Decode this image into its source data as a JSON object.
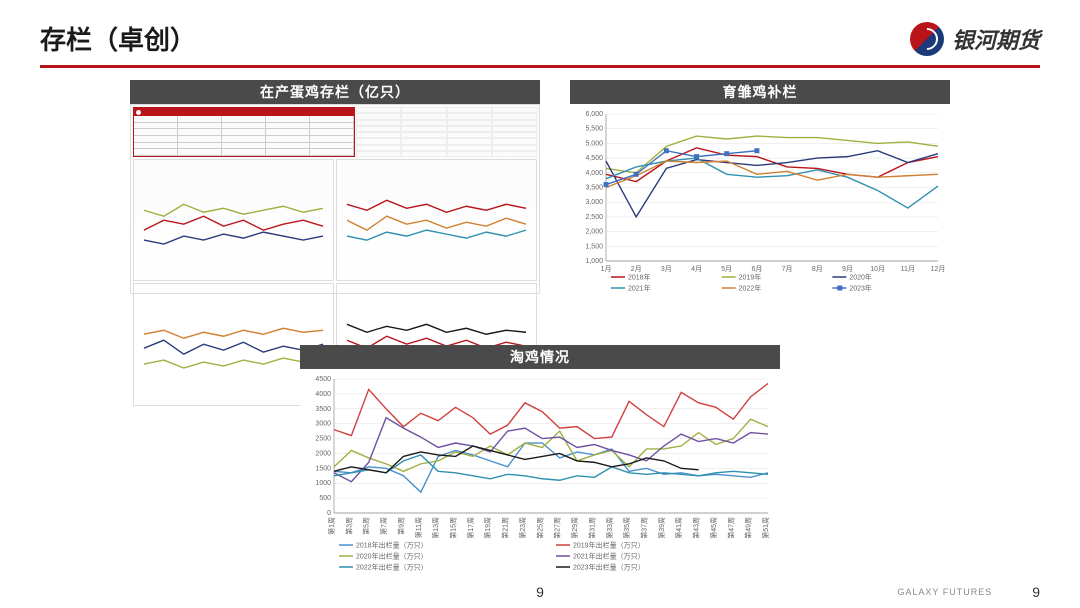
{
  "header": {
    "title": "存栏（卓创）",
    "company": "银河期货"
  },
  "panels": {
    "left": {
      "title": "在产蛋鸡存栏（亿只）"
    },
    "right": {
      "title": "育雏鸡补栏"
    },
    "bottom": {
      "title": "淘鸡情况"
    }
  },
  "chart_right": {
    "type": "line",
    "ylim": [
      1000,
      6000
    ],
    "ytick_step": 500,
    "yticks": [
      "1,000",
      "1,500",
      "2,000",
      "2,500",
      "3,000",
      "3,500",
      "4,000",
      "4,500",
      "5,000",
      "5,500",
      "6,000"
    ],
    "xticks": [
      "1月",
      "2月",
      "3月",
      "4月",
      "5月",
      "6月",
      "7月",
      "8月",
      "9月",
      "10月",
      "11月",
      "12月"
    ],
    "background_color": "#ffffff",
    "grid_color": "#e0e0e0",
    "series": [
      {
        "name": "2018年",
        "color": "#b8141a",
        "marker": "none",
        "values": [
          3950,
          3700,
          4400,
          4850,
          4600,
          4550,
          4200,
          4150,
          3950,
          3850,
          4350,
          4550
        ]
      },
      {
        "name": "2019年",
        "color": "#a0b040",
        "marker": "none",
        "values": [
          4150,
          4000,
          4900,
          5250,
          5150,
          5250,
          5200,
          5200,
          5100,
          5000,
          5050,
          4900
        ]
      },
      {
        "name": "2020年",
        "color": "#2a3a7a",
        "marker": "none",
        "values": [
          4400,
          2500,
          4150,
          4450,
          4350,
          4250,
          4350,
          4500,
          4550,
          4750,
          4350,
          4650
        ]
      },
      {
        "name": "2021年",
        "color": "#3090b0",
        "marker": "none",
        "values": [
          3800,
          4200,
          4400,
          4500,
          3950,
          3850,
          3900,
          4100,
          3850,
          3400,
          2800,
          3550
        ]
      },
      {
        "name": "2022年",
        "color": "#d08030",
        "marker": "none",
        "values": [
          3500,
          3900,
          4400,
          4350,
          4400,
          3950,
          4050,
          3750,
          3950,
          3850,
          3900,
          3950
        ]
      },
      {
        "name": "2023年",
        "color": "#4070c0",
        "marker": "square",
        "values": [
          3600,
          3950,
          4750,
          4550,
          4650,
          4750
        ]
      }
    ],
    "legend_pos": "bottom"
  },
  "chart_bottom": {
    "type": "line",
    "ylim": [
      0,
      4500
    ],
    "ytick_step": 500,
    "yticks": [
      "0",
      "500",
      "1000",
      "1500",
      "2000",
      "2500",
      "3000",
      "3500",
      "4000",
      "4500"
    ],
    "xticks": [
      "第1周",
      "第3周",
      "第5周",
      "第7周",
      "第9周",
      "第11周",
      "第13周",
      "第15周",
      "第17周",
      "第19周",
      "第21周",
      "第23周",
      "第25周",
      "第27周",
      "第29周",
      "第31周",
      "第33周",
      "第35周",
      "第37周",
      "第39周",
      "第41周",
      "第43周",
      "第45周",
      "第47周",
      "第49周",
      "第51周"
    ],
    "background_color": "#ffffff",
    "grid_color": "#e0e0e0",
    "series": [
      {
        "name": "2018年出栏量（万只）",
        "color": "#4a90d0",
        "values": [
          1400,
          1350,
          1550,
          1500,
          1250,
          700,
          1900,
          2100,
          1950,
          1750,
          1550,
          2350,
          2350,
          1850,
          2050,
          1950,
          2150,
          1400,
          1500,
          1300,
          1350,
          1250,
          1300,
          1250,
          1200,
          1350
        ]
      },
      {
        "name": "2019年出栏量（万只）",
        "color": "#d04040",
        "values": [
          2800,
          2600,
          4150,
          3500,
          2900,
          3350,
          3100,
          3550,
          3200,
          2650,
          2950,
          3700,
          3400,
          2850,
          2900,
          2500,
          2550,
          3750,
          3300,
          2900,
          4050,
          3700,
          3550,
          3150,
          3900,
          4350
        ]
      },
      {
        "name": "2020年出栏量（万只）",
        "color": "#a0b040",
        "values": [
          1550,
          2100,
          1850,
          1650,
          1400,
          1650,
          1750,
          2050,
          1900,
          2250,
          1950,
          2350,
          2200,
          2750,
          1750,
          1950,
          2100,
          1550,
          2150,
          2150,
          2250,
          2700,
          2300,
          2500,
          3150,
          2900
        ]
      },
      {
        "name": "2021年出栏量（万只）",
        "color": "#7050a0",
        "values": [
          1350,
          1050,
          1700,
          3200,
          2850,
          2550,
          2200,
          2350,
          2250,
          2050,
          2750,
          2850,
          2500,
          2550,
          2200,
          2300,
          2100,
          1950,
          1750,
          2250,
          2650,
          2400,
          2500,
          2350,
          2700,
          2650
        ]
      },
      {
        "name": "2022年出栏量（万只）",
        "color": "#3090b0",
        "values": [
          1250,
          1350,
          1450,
          1350,
          1750,
          1950,
          1400,
          1350,
          1250,
          1150,
          1300,
          1250,
          1150,
          1100,
          1250,
          1200,
          1550,
          1350,
          1300,
          1350,
          1300,
          1250,
          1350,
          1400,
          1350,
          1300
        ]
      },
      {
        "name": "2023年出栏量（万只）",
        "color": "#1a1a1a",
        "values": [
          1400,
          1550,
          1450,
          1350,
          1900,
          2050,
          1950,
          1900,
          2250,
          2100,
          1950,
          1800,
          1900,
          2000,
          1750,
          1700,
          1550,
          1650,
          1850,
          1750,
          1500,
          1450
        ]
      }
    ],
    "legend_pos": "bottom"
  },
  "footer": {
    "company": "GALAXY FUTURES",
    "page": "9"
  }
}
